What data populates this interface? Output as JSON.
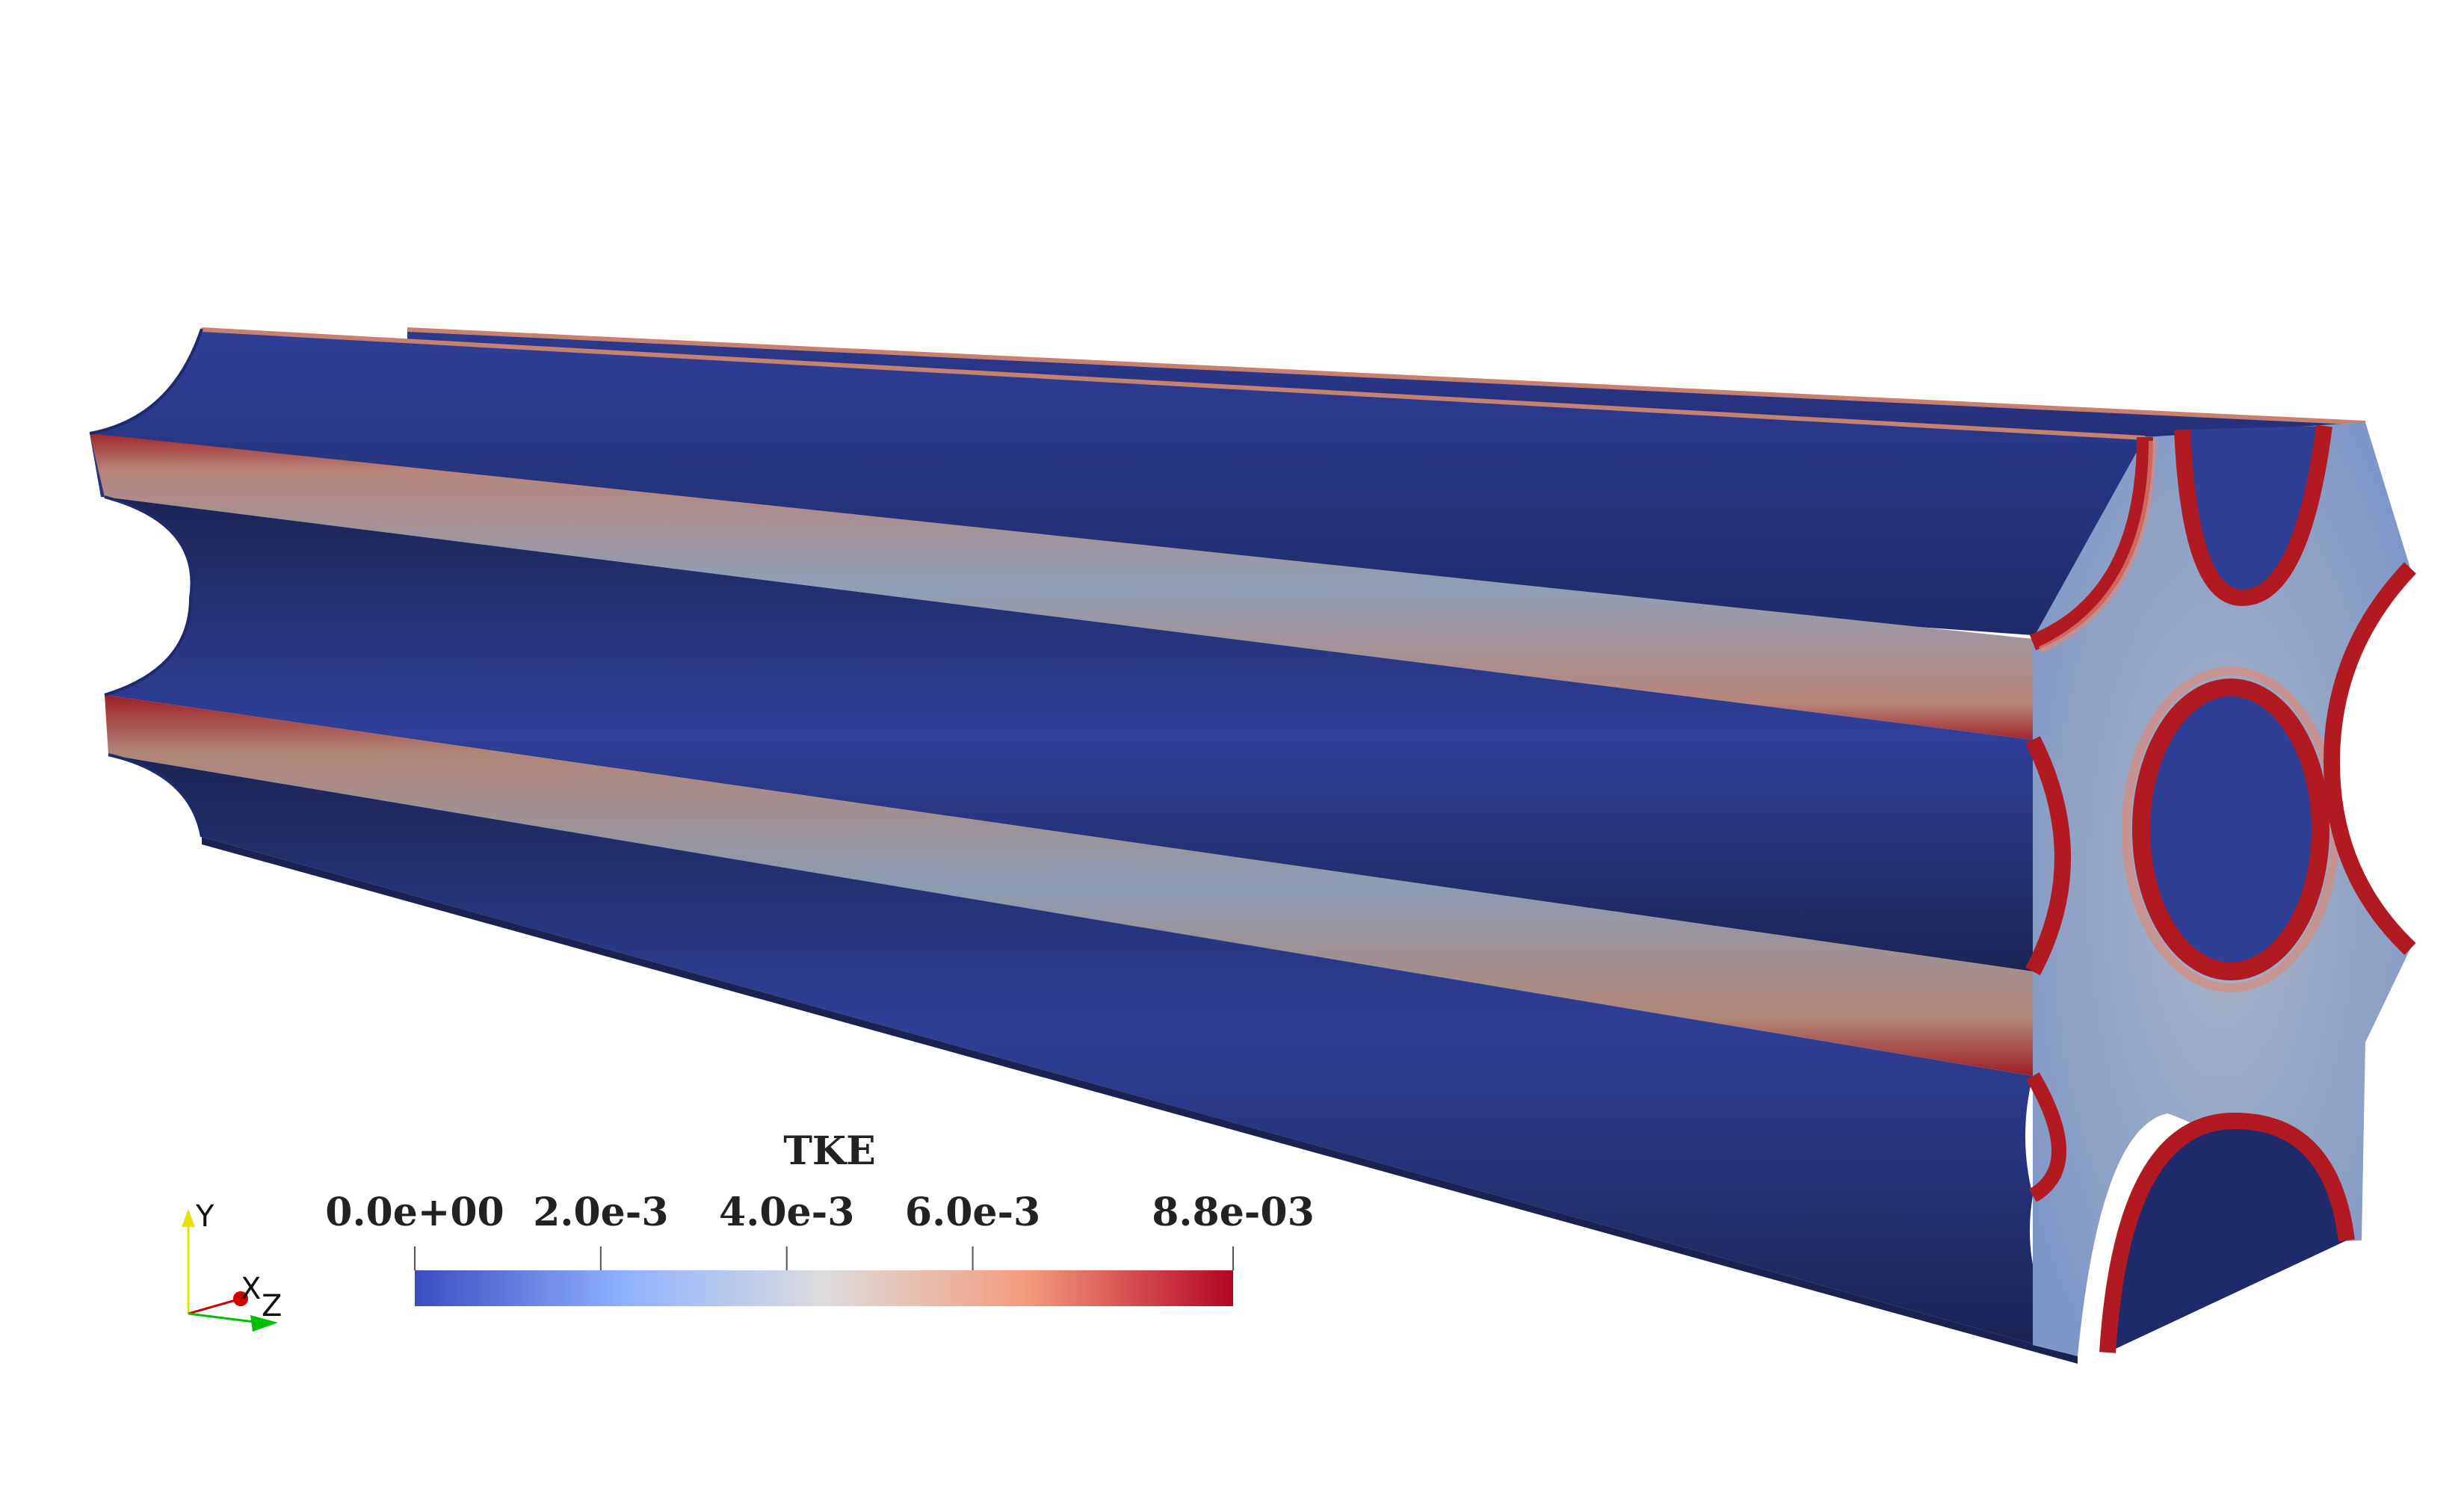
{
  "colorbar": {
    "title": "TKE",
    "ticks": [
      {
        "label": "0.0e+00",
        "value": 0.0
      },
      {
        "label": "2.0e-3",
        "value": 0.002
      },
      {
        "label": "4.0e-3",
        "value": 0.004
      },
      {
        "label": "6.0e-3",
        "value": 0.006
      },
      {
        "label": "8.8e-03",
        "value": 0.0088
      }
    ],
    "range": [
      0.0,
      0.0088
    ],
    "colormap": [
      "#3b4cc0",
      "#8db0fe",
      "#dddddd",
      "#f49a7b",
      "#b40426"
    ]
  },
  "orientation_axes": {
    "y_label": "Y",
    "x_label": "X",
    "z_label": "Z",
    "y_color": "#e8e000",
    "x_color": "#d40000",
    "z_color": "#00c000"
  },
  "surface_colors": {
    "low": "#2f3f96",
    "low_dark": "#1a2357",
    "mid": "#8f9fb7",
    "high": "#b21a22"
  }
}
